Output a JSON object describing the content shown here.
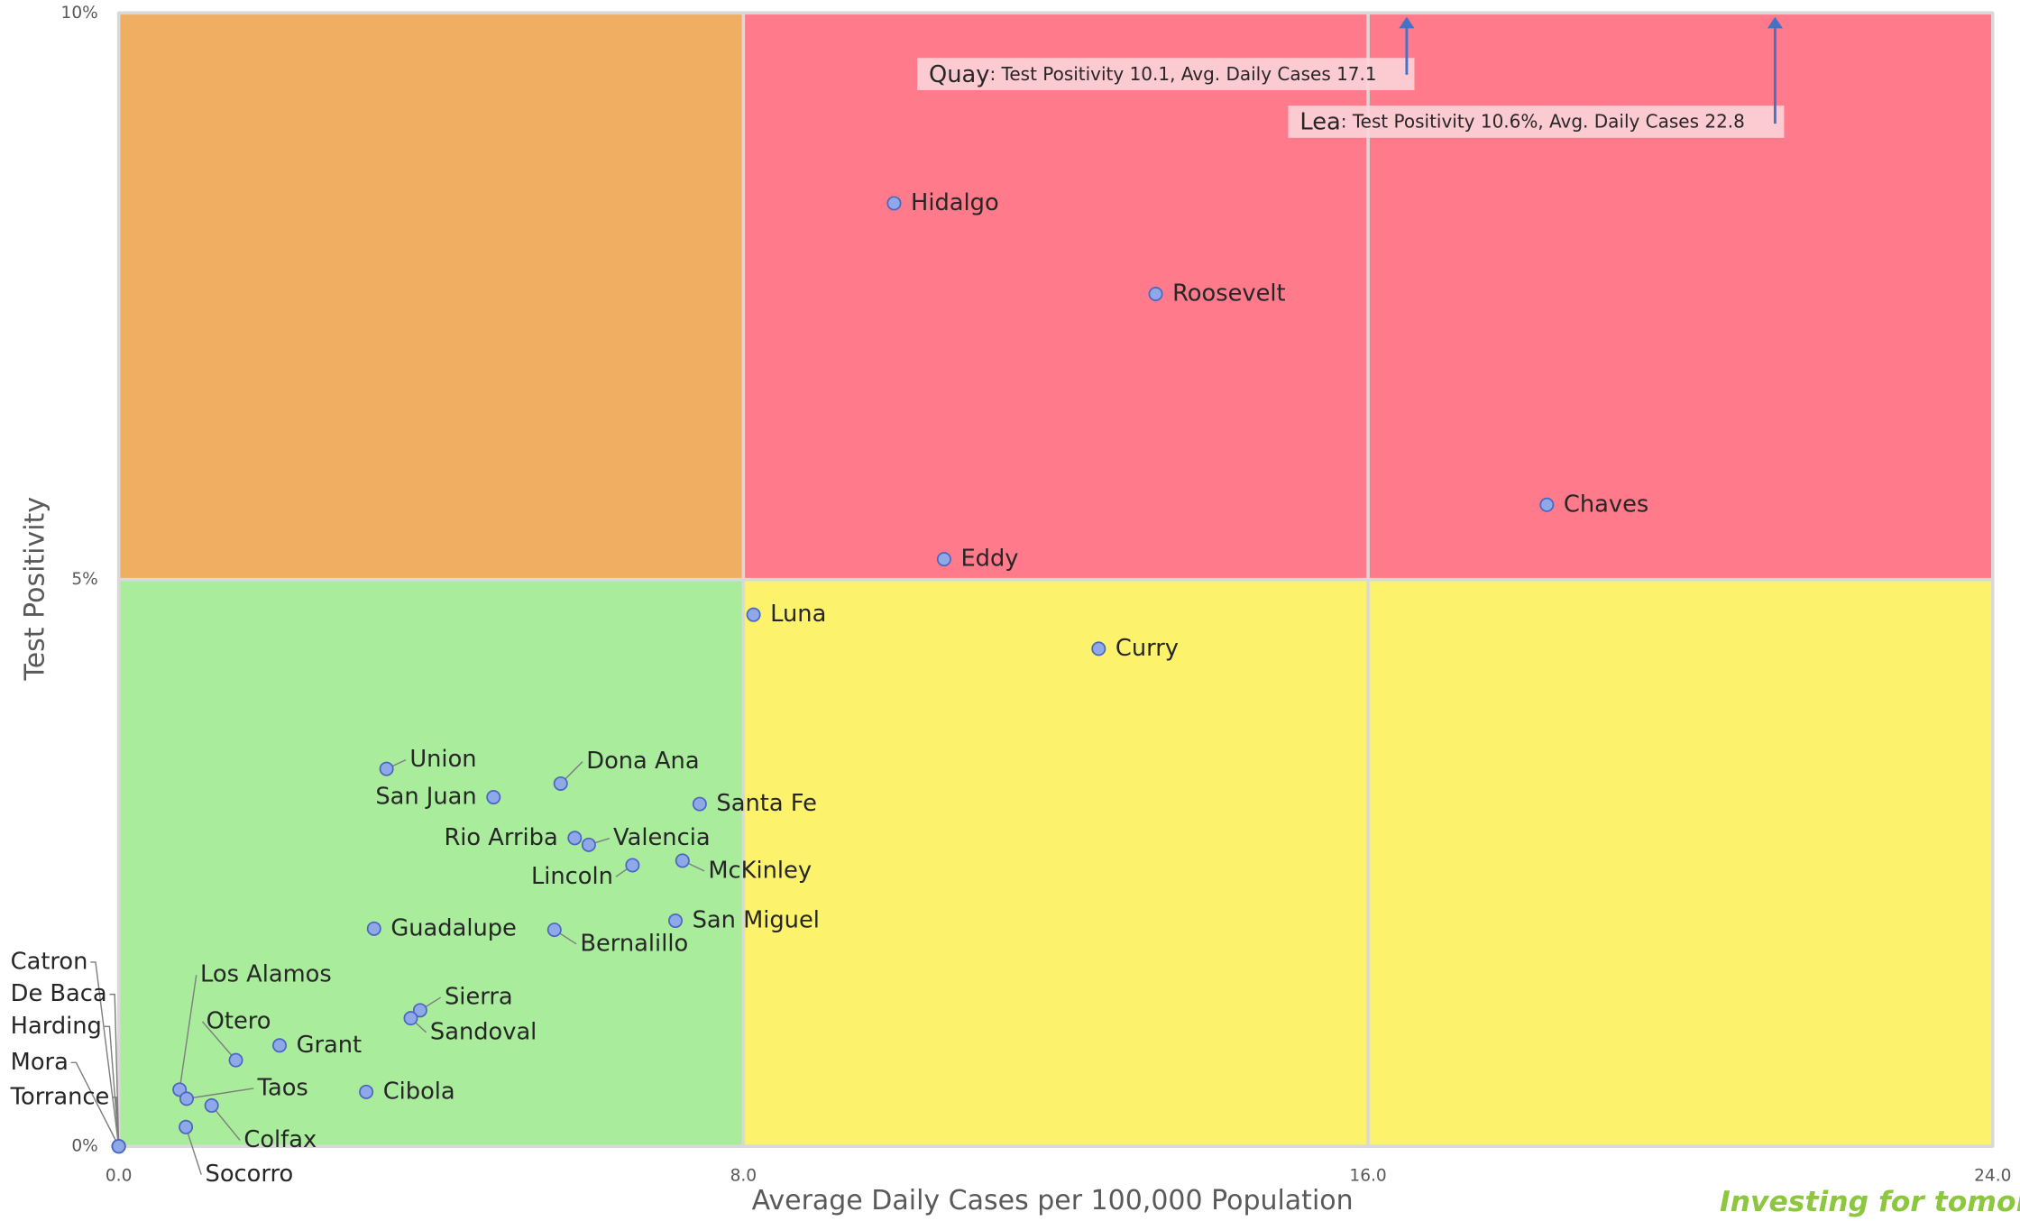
{
  "chart_data": {
    "type": "scatter",
    "xlabel": "Average Daily Cases per 100,000 Population",
    "ylabel": "Test Positivity",
    "xlim": [
      0,
      24
    ],
    "ylim": [
      0,
      10
    ],
    "xticks": [
      {
        "value": 0,
        "label": "0.0"
      },
      {
        "value": 8,
        "label": "8.0"
      },
      {
        "value": 16,
        "label": "16.0"
      },
      {
        "value": 24,
        "label": "24.0"
      }
    ],
    "yticks": [
      {
        "value": 0,
        "label": "0%"
      },
      {
        "value": 5,
        "label": "5%"
      },
      {
        "value": 10,
        "label": "10%"
      }
    ],
    "grid": true,
    "color": "#8fa8e8",
    "zones": [
      {
        "xlim": [
          0,
          8
        ],
        "ylim": [
          5,
          10
        ],
        "color": "#f0ae62"
      },
      {
        "xlim": [
          8,
          24
        ],
        "ylim": [
          5,
          10
        ],
        "color": "#ff7a8a"
      },
      {
        "xlim": [
          0,
          8
        ],
        "ylim": [
          0,
          5
        ],
        "color": "#a9ec9c"
      },
      {
        "xlim": [
          8,
          24
        ],
        "ylim": [
          0,
          5
        ],
        "color": "#fcf26c"
      }
    ],
    "point_labels": [
      "Hidalgo",
      "Roosevelt",
      "Chaves",
      "Eddy",
      "Luna",
      "Curry",
      "Union",
      "Dona Ana",
      "San Juan",
      "Santa Fe",
      "Rio Arriba",
      "Valencia",
      "Lincoln",
      "McKinley",
      "Guadalupe",
      "Bernalillo",
      "San Miguel",
      "Sierra",
      "Sandoval",
      "Grant",
      "Otero",
      "Cibola",
      "Los Alamos",
      "Taos",
      "Colfax",
      "Socorro",
      "Catron",
      "De Baca",
      "Harding",
      "Mora",
      "Torrance"
    ],
    "x": [
      9.93,
      13.28,
      18.29,
      10.57,
      8.13,
      12.55,
      3.43,
      5.66,
      4.8,
      7.44,
      5.84,
      6.02,
      6.58,
      7.22,
      3.27,
      5.58,
      7.13,
      3.86,
      3.74,
      2.06,
      1.5,
      3.17,
      0.78,
      0.87,
      1.19,
      0.86,
      0,
      0,
      0,
      0,
      0
    ],
    "values": [
      8.32,
      7.52,
      5.66,
      5.18,
      4.69,
      4.39,
      3.33,
      3.2,
      3.08,
      3.02,
      2.72,
      2.66,
      2.48,
      2.52,
      1.92,
      1.91,
      1.99,
      1.2,
      1.13,
      0.89,
      0.76,
      0.48,
      0.5,
      0.42,
      0.36,
      0.17,
      0,
      0,
      0,
      0,
      0
    ],
    "annotations": [
      {
        "label": "Quay",
        "text": ": Test Positivity 10.1, Avg. Daily Cases 17.1"
      },
      {
        "label": "Lea",
        "text": ": Test Positivity 10.6%, Avg. Daily Cases 22.8"
      }
    ],
    "footer": "Investing for tomorrow"
  }
}
